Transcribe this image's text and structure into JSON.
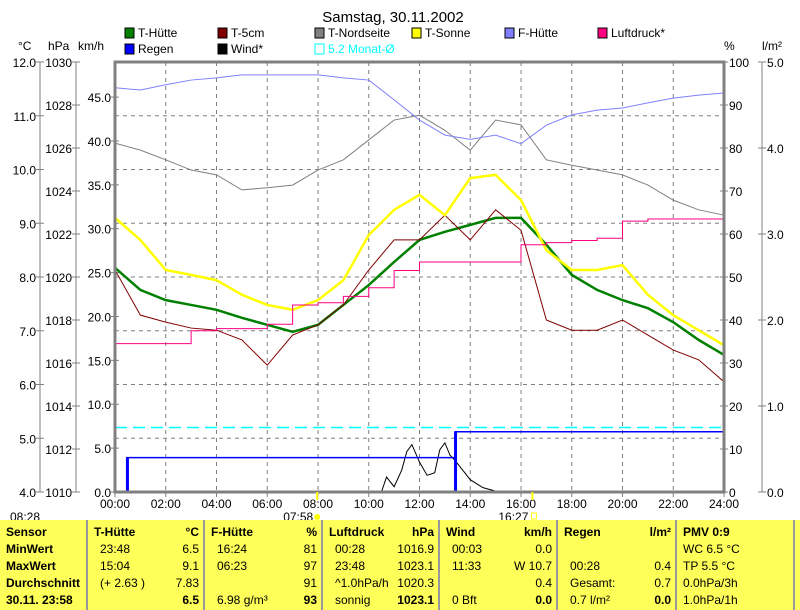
{
  "chart_data": {
    "type": "line",
    "title": "Samstag, 30.11.2002",
    "axes": {
      "celsius": {
        "label": "°C",
        "range": [
          4,
          12
        ],
        "ticks": [
          "4.0",
          "5.0",
          "6.0",
          "7.0",
          "8.0",
          "9.0",
          "10.0",
          "11.0",
          "12.0"
        ]
      },
      "hpa": {
        "label": "hPa",
        "range": [
          1010,
          1030
        ],
        "ticks": [
          "1010",
          "1012",
          "1014",
          "1016",
          "1018",
          "1020",
          "1022",
          "1024",
          "1026",
          "1028",
          "1030"
        ]
      },
      "kmh": {
        "label": "km/h",
        "range": [
          0,
          49
        ],
        "ticks": [
          "0.0",
          "5.0",
          "10.0",
          "15.0",
          "20.0",
          "25.0",
          "30.0",
          "35.0",
          "40.0",
          "45.0"
        ]
      },
      "percent": {
        "label": "%",
        "range": [
          0,
          100
        ],
        "ticks": [
          "0",
          "10",
          "20",
          "30",
          "40",
          "50",
          "60",
          "70",
          "80",
          "90",
          "100"
        ]
      },
      "rain": {
        "label": "l/m²",
        "range": [
          0,
          5
        ],
        "ticks": [
          "0.0",
          "1.0",
          "2.0",
          "3.0",
          "4.0",
          "5.0"
        ]
      },
      "x": {
        "range": [
          0,
          24
        ],
        "ticks": [
          "00:00",
          "02:00",
          "04:00",
          "06:00",
          "08:00",
          "10:00",
          "12:00",
          "14:00",
          "16:00",
          "18:00",
          "20:00",
          "22:00",
          "24:00"
        ]
      }
    },
    "hours": [
      0,
      1,
      2,
      3,
      4,
      5,
      6,
      7,
      8,
      9,
      10,
      11,
      12,
      13,
      14,
      15,
      16,
      17,
      18,
      19,
      20,
      21,
      22,
      23,
      24
    ],
    "series": [
      {
        "name": "T-Hütte",
        "axis": "celsius",
        "color": "#008000",
        "width": 2.5,
        "values": [
          8.17,
          7.76,
          7.57,
          7.48,
          7.39,
          7.24,
          7.11,
          6.98,
          7.11,
          7.48,
          7.85,
          8.28,
          8.69,
          8.84,
          8.97,
          9.1,
          9.1,
          8.6,
          8.04,
          7.76,
          7.57,
          7.42,
          7.16,
          6.83,
          6.55
        ]
      },
      {
        "name": "T-5cm",
        "axis": "celsius",
        "color": "#800000",
        "width": 1,
        "values": [
          8.13,
          7.29,
          7.16,
          7.05,
          7.01,
          6.83,
          6.36,
          6.92,
          7.11,
          7.48,
          8.13,
          8.69,
          8.69,
          9.15,
          8.69,
          9.25,
          8.87,
          7.2,
          7.01,
          7.01,
          7.2,
          6.92,
          6.64,
          6.46,
          6.05
        ]
      },
      {
        "name": "T-Nordseite",
        "axis": "celsius",
        "color": "#808080",
        "width": 1,
        "values": [
          10.49,
          10.36,
          10.18,
          9.99,
          9.9,
          9.62,
          9.66,
          9.71,
          9.99,
          10.18,
          10.55,
          10.92,
          11.01,
          10.73,
          10.36,
          10.92,
          10.83,
          10.18,
          10.08,
          9.99,
          9.9,
          9.71,
          9.43,
          9.25,
          9.15
        ]
      },
      {
        "name": "T-Sonne",
        "axis": "celsius",
        "color": "#ffff00",
        "width": 2.5,
        "values": [
          9.1,
          8.69,
          8.13,
          8.04,
          7.94,
          7.67,
          7.48,
          7.39,
          7.57,
          7.94,
          8.78,
          9.25,
          9.53,
          9.15,
          9.84,
          9.9,
          9.43,
          8.5,
          8.13,
          8.13,
          8.22,
          7.67,
          7.29,
          7.01,
          6.73
        ]
      },
      {
        "name": "F-Hütte",
        "axis": "percent",
        "color": "#8080ff",
        "width": 1,
        "values": [
          94,
          93.5,
          94.7,
          95.8,
          96.3,
          97,
          97,
          97,
          97,
          96.3,
          95.8,
          91.2,
          86.5,
          83,
          82,
          83,
          81,
          85.3,
          87.7,
          88.8,
          89.3,
          90.5,
          91.6,
          92.3,
          92.8
        ]
      },
      {
        "name": "Luftdruck*",
        "axis": "hpa",
        "color": "#ff0080",
        "width": 1,
        "values": [
          1016.9,
          1016.9,
          1016.9,
          1017.5,
          1017.6,
          1017.6,
          1017.8,
          1018.7,
          1018.8,
          1019.1,
          1019.5,
          1020.3,
          1020.7,
          1020.7,
          1020.7,
          1020.7,
          1021.5,
          1021.6,
          1021.7,
          1021.8,
          1022.6,
          1022.7,
          1022.7,
          1022.7,
          1023.1
        ]
      }
    ],
    "wind": {
      "name": "Wind*",
      "axis": "kmh",
      "color": "#000000",
      "x": [
        0,
        10.5,
        10.7,
        11,
        11.3,
        11.5,
        11.7,
        12,
        12.3,
        12.6,
        12.8,
        13,
        13.2,
        13.4,
        13.7,
        14,
        14.5,
        15,
        15.5,
        24
      ],
      "values": [
        0,
        0,
        1.7,
        0.6,
        2.5,
        4.6,
        5.4,
        3.4,
        1.9,
        2.2,
        4.8,
        5.6,
        4.2,
        3.6,
        2.5,
        1.4,
        0.5,
        0.1,
        0,
        0
      ]
    },
    "rain": {
      "name": "Regen",
      "axis": "rain",
      "color": "#0000ff",
      "x": [
        0,
        0.47,
        0.47,
        13.4,
        13.4,
        24
      ],
      "values": [
        0,
        0,
        0.4,
        0.4,
        0.7,
        0.7
      ]
    },
    "monthly_avg": {
      "name": "5.2 Monat-Ø",
      "axis": "celsius",
      "color": "#00ffff",
      "value": 5.2
    },
    "legend": [
      {
        "name": "T-Hütte",
        "color": "#008000"
      },
      {
        "name": "T-5cm",
        "color": "#800000"
      },
      {
        "name": "T-Nordseite",
        "color": "#808080"
      },
      {
        "name": "T-Sonne",
        "color": "#ffff00"
      },
      {
        "name": "F-Hütte",
        "color": "#8080ff"
      },
      {
        "name": "Luftdruck*",
        "color": "#ff0080"
      },
      {
        "name": "Regen",
        "color": "#0000ff"
      },
      {
        "name": "Wind*",
        "color": "#000000"
      },
      {
        "name": "5.2 Monat-Ø",
        "color": "#00ffff",
        "outline": true
      }
    ],
    "legend_placement": "top",
    "grid": true,
    "time_left": "08:28",
    "sunrise": "07:58",
    "sunset": "16:27",
    "sunrise_hour": 7.97,
    "sunset_hour": 16.45
  },
  "table": {
    "headers": [
      "Sensor",
      "T-Hütte",
      "°C",
      "F-Hütte",
      "%",
      "Luftdruck",
      "hPa",
      "Wind",
      "km/h",
      "Regen",
      "l/m²",
      "PMV 0:9"
    ],
    "rows": [
      [
        "MinWert",
        "23:48",
        "6.5",
        "16:24",
        "81",
        "00:28",
        "1016.9",
        "00:03",
        "0.0",
        "",
        "",
        "WC 6.5 °C"
      ],
      [
        "MaxWert",
        "15:04",
        "9.1",
        "06:23",
        "97",
        "23:48",
        "1023.1",
        "11:33",
        "W 10.7",
        "00:28",
        "0.4",
        "TP 5.5 °C"
      ],
      [
        "Durchschnitt",
        "(+ 2.63 )",
        "7.83",
        "",
        "91",
        "^1.0hPa/h",
        "1020.3",
        "",
        "0.4",
        "Gesamt:",
        "0.7",
        "0.0hPa/3h"
      ],
      [
        "30.11. 23:58",
        "",
        "6.5",
        "6.98 g/m³",
        "93",
        "sonnig",
        "1023.1",
        "0 Bft",
        "0.0",
        "0.7 l/m²",
        "0.0",
        "1.0hPa/1h"
      ]
    ]
  }
}
